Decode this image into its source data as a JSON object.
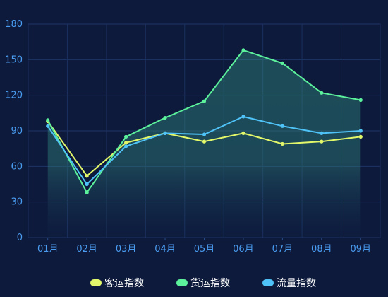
{
  "chart_data": {
    "type": "line",
    "categories": [
      "01月",
      "02月",
      "03月",
      "04月",
      "05月",
      "06月",
      "07月",
      "08月",
      "09月"
    ],
    "ylim": [
      0,
      180
    ],
    "yticks": [
      0,
      30,
      60,
      90,
      120,
      150,
      180
    ],
    "grid": true,
    "legend_position": "bottom-center",
    "series": [
      {
        "name": "客运指数",
        "color": "#e3f76a",
        "values": [
          98,
          52,
          80,
          88,
          81,
          88,
          79,
          81,
          85
        ]
      },
      {
        "name": "货运指数",
        "color": "#5cf29c",
        "values": [
          99,
          38,
          85,
          101,
          115,
          158,
          147,
          122,
          116
        ]
      },
      {
        "name": "流量指数",
        "color": "#4fc3f7",
        "values": [
          94,
          45,
          77,
          88,
          87,
          102,
          94,
          88,
          90
        ]
      }
    ],
    "area_fill_series": "货运指数"
  }
}
